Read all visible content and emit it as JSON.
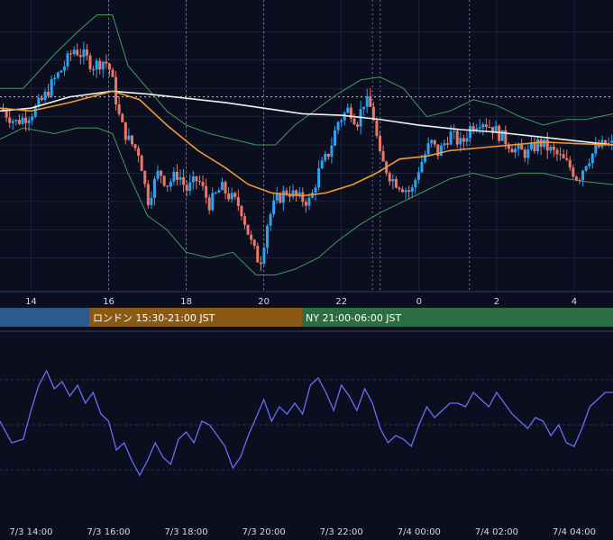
{
  "chart_data": [
    {
      "type": "candlestick",
      "title": "",
      "colors": {
        "background": "#0b0e1f",
        "up": "#2aa3f0",
        "down": "#e8786a",
        "ma_long": "#f2f2f2",
        "ma_short": "#f29a2e",
        "bollinger": "#3f9a5c",
        "grid": "#2a2f45"
      },
      "x_tick_labels": [
        "14",
        "16",
        "18",
        "20",
        "22",
        "0",
        "2",
        "4"
      ],
      "x_tick_hours": [
        14,
        16,
        18,
        20,
        22,
        24,
        26,
        28
      ],
      "x_range_hours": [
        13.2,
        29.0
      ],
      "y_range": [
        0,
        100
      ],
      "reference_line": 67,
      "vertical_markers_hours": [
        16.0,
        18.0,
        20.0,
        22.8,
        23.0,
        25.3
      ],
      "close_path": [
        [
          13.2,
          63
        ],
        [
          13.6,
          58
        ],
        [
          14.0,
          61
        ],
        [
          14.3,
          66
        ],
        [
          14.6,
          73
        ],
        [
          14.9,
          79
        ],
        [
          15.1,
          84
        ],
        [
          15.4,
          81
        ],
        [
          15.6,
          78
        ],
        [
          15.9,
          80
        ],
        [
          16.05,
          76
        ],
        [
          16.3,
          58
        ],
        [
          16.5,
          52
        ],
        [
          16.8,
          47
        ],
        [
          17.0,
          30
        ],
        [
          17.3,
          41
        ],
        [
          17.5,
          36
        ],
        [
          17.8,
          40
        ],
        [
          18.0,
          34
        ],
        [
          18.3,
          38
        ],
        [
          18.6,
          29
        ],
        [
          18.9,
          35
        ],
        [
          19.1,
          32
        ],
        [
          19.4,
          28
        ],
        [
          19.7,
          14
        ],
        [
          19.9,
          8
        ],
        [
          20.1,
          23
        ],
        [
          20.3,
          30
        ],
        [
          20.6,
          34
        ],
        [
          20.9,
          31
        ],
        [
          21.2,
          30
        ],
        [
          21.4,
          40
        ],
        [
          21.7,
          48
        ],
        [
          21.9,
          58
        ],
        [
          22.2,
          63
        ],
        [
          22.4,
          58
        ],
        [
          22.6,
          66
        ],
        [
          22.8,
          62
        ],
        [
          23.0,
          45
        ],
        [
          23.3,
          38
        ],
        [
          23.5,
          36
        ],
        [
          23.8,
          33
        ],
        [
          24.0,
          42
        ],
        [
          24.3,
          51
        ],
        [
          24.5,
          47
        ],
        [
          24.8,
          54
        ],
        [
          25.1,
          50
        ],
        [
          25.3,
          56
        ],
        [
          25.6,
          59
        ],
        [
          25.9,
          56
        ],
        [
          26.2,
          52
        ],
        [
          26.5,
          48
        ],
        [
          26.8,
          47
        ],
        [
          27.1,
          51
        ],
        [
          27.4,
          48
        ],
        [
          27.6,
          46
        ],
        [
          27.9,
          42
        ],
        [
          28.1,
          38
        ],
        [
          28.3,
          44
        ],
        [
          28.6,
          49
        ],
        [
          28.8,
          50
        ],
        [
          29.0,
          50
        ]
      ],
      "ma_long": [
        [
          13.2,
          62
        ],
        [
          14.0,
          63
        ],
        [
          15.0,
          67
        ],
        [
          16.1,
          69
        ],
        [
          17.0,
          68
        ],
        [
          18.0,
          66.5
        ],
        [
          19.0,
          65
        ],
        [
          20.0,
          63
        ],
        [
          21.0,
          61
        ],
        [
          22.0,
          60.5
        ],
        [
          23.0,
          59
        ],
        [
          24.0,
          57
        ],
        [
          25.0,
          55.5
        ],
        [
          26.0,
          54.5
        ],
        [
          27.0,
          53
        ],
        [
          28.0,
          51.5
        ],
        [
          29.0,
          50
        ]
      ],
      "ma_short": [
        [
          13.2,
          63
        ],
        [
          14.0,
          62
        ],
        [
          15.0,
          65
        ],
        [
          16.1,
          69
        ],
        [
          16.8,
          66
        ],
        [
          17.5,
          57
        ],
        [
          18.3,
          48
        ],
        [
          19.0,
          42
        ],
        [
          19.6,
          36
        ],
        [
          20.2,
          33
        ],
        [
          21.0,
          32
        ],
        [
          21.6,
          33
        ],
        [
          22.3,
          36
        ],
        [
          22.9,
          40
        ],
        [
          23.5,
          45
        ],
        [
          24.2,
          46
        ],
        [
          24.8,
          48
        ],
        [
          25.6,
          49
        ],
        [
          26.4,
          50
        ],
        [
          27.2,
          51
        ],
        [
          28.0,
          50.5
        ],
        [
          29.0,
          50
        ]
      ],
      "bollinger_upper": [
        [
          13.2,
          70
        ],
        [
          13.8,
          70
        ],
        [
          14.6,
          82
        ],
        [
          15.2,
          90
        ],
        [
          15.7,
          96
        ],
        [
          16.1,
          96
        ],
        [
          16.5,
          78
        ],
        [
          17.0,
          70
        ],
        [
          17.5,
          62
        ],
        [
          18.0,
          57
        ],
        [
          18.6,
          54
        ],
        [
          19.2,
          52
        ],
        [
          19.8,
          50
        ],
        [
          20.3,
          50
        ],
        [
          20.8,
          57
        ],
        [
          21.4,
          63
        ],
        [
          21.9,
          68
        ],
        [
          22.5,
          73
        ],
        [
          23.0,
          74
        ],
        [
          23.6,
          70
        ],
        [
          24.2,
          60
        ],
        [
          24.8,
          62
        ],
        [
          25.4,
          66
        ],
        [
          26.0,
          64
        ],
        [
          26.6,
          60
        ],
        [
          27.2,
          57
        ],
        [
          27.8,
          59
        ],
        [
          28.3,
          59
        ],
        [
          29.0,
          61
        ]
      ],
      "bollinger_lower": [
        [
          13.2,
          52
        ],
        [
          13.8,
          56
        ],
        [
          14.6,
          54
        ],
        [
          15.2,
          56
        ],
        [
          15.7,
          56
        ],
        [
          16.1,
          54
        ],
        [
          16.5,
          40
        ],
        [
          17.0,
          25
        ],
        [
          17.5,
          20
        ],
        [
          18.0,
          12
        ],
        [
          18.6,
          10
        ],
        [
          19.2,
          12
        ],
        [
          19.8,
          4
        ],
        [
          20.3,
          4
        ],
        [
          20.8,
          6
        ],
        [
          21.4,
          10
        ],
        [
          21.9,
          16
        ],
        [
          22.5,
          22
        ],
        [
          23.0,
          26
        ],
        [
          23.6,
          30
        ],
        [
          24.2,
          34
        ],
        [
          24.8,
          38
        ],
        [
          25.4,
          40
        ],
        [
          26.0,
          38
        ],
        [
          26.6,
          40
        ],
        [
          27.2,
          40
        ],
        [
          27.8,
          38
        ],
        [
          28.3,
          37
        ],
        [
          29.0,
          36
        ]
      ]
    },
    {
      "type": "line",
      "title": "",
      "x_range_hours": [
        13.2,
        29.0
      ],
      "y_range": [
        0,
        100
      ],
      "color": "#6b6cf6",
      "gridlines": [
        25,
        50,
        75
      ],
      "x_tick_labels": [
        "7/3 14:00",
        "7/3 16:00",
        "7/3 18:00",
        "7/3 20:00",
        "7/3 22:00",
        "7/4 00:00",
        "7/4 02:00",
        "7/4 04:00"
      ],
      "x_tick_hours": [
        14,
        16,
        18,
        20,
        22,
        24,
        26,
        28
      ],
      "series": [
        {
          "x": [
            13.2,
            13.5,
            13.8,
            14.0,
            14.2,
            14.4,
            14.6,
            14.8,
            15.0,
            15.2,
            15.4,
            15.6,
            15.8,
            16.0,
            16.2,
            16.4,
            16.6,
            16.8,
            17.0,
            17.2,
            17.4,
            17.6,
            17.8,
            18.0,
            18.2,
            18.4,
            18.6,
            18.8,
            19.0,
            19.2,
            19.4,
            19.6,
            19.8,
            20.0,
            20.2,
            20.4,
            20.6,
            20.8,
            21.0,
            21.2,
            21.4,
            21.6,
            21.8,
            22.0,
            22.2,
            22.4,
            22.6,
            22.8,
            23.0,
            23.2,
            23.4,
            23.6,
            23.8,
            24.0,
            24.2,
            24.4,
            24.6,
            24.8,
            25.0,
            25.2,
            25.4,
            25.6,
            25.8,
            26.0,
            26.2,
            26.4,
            26.6,
            26.8,
            27.0,
            27.2,
            27.4,
            27.6,
            27.8,
            28.0,
            28.2,
            28.4,
            28.6,
            28.8,
            29.0
          ],
          "y": [
            52,
            40,
            42,
            58,
            72,
            80,
            70,
            74,
            66,
            72,
            62,
            68,
            56,
            52,
            36,
            40,
            30,
            22,
            30,
            40,
            32,
            28,
            42,
            46,
            40,
            52,
            50,
            44,
            38,
            26,
            32,
            44,
            54,
            64,
            52,
            60,
            56,
            62,
            56,
            72,
            76,
            68,
            58,
            72,
            66,
            58,
            70,
            62,
            48,
            40,
            44,
            42,
            38,
            50,
            60,
            54,
            58,
            62,
            62,
            60,
            68,
            64,
            60,
            68,
            62,
            56,
            52,
            48,
            54,
            52,
            44,
            50,
            40,
            38,
            48,
            60,
            64,
            68,
            68
          ]
        }
      ]
    }
  ],
  "sessions": [
    {
      "label": "",
      "color": "#2d5a8c"
    },
    {
      "label": "ロンドン 15:30-21:00 JST",
      "color": "#8a5a15"
    },
    {
      "label": "NY 21:00-06:00 JST",
      "color": "#2c6e42"
    }
  ]
}
